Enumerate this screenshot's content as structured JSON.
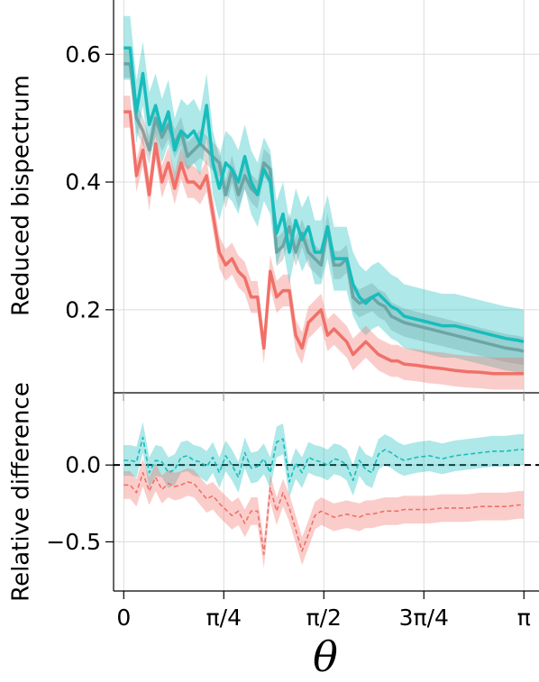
{
  "chart_data": [
    {
      "type": "line",
      "ylabel": "Reduced bispectrum",
      "xlabel": "",
      "ylim": [
        0.07,
        0.685
      ],
      "xlim": [
        -0.08,
        3.26
      ],
      "grid": true,
      "yticks": [
        {
          "value": 0.2,
          "label": "0.2"
        },
        {
          "value": 0.4,
          "label": "0.4"
        },
        {
          "value": 0.6,
          "label": "0.6"
        }
      ],
      "colors": {
        "gray": "#999999",
        "teal": "#17bdbd",
        "red": "#f07068"
      },
      "series": [
        {
          "key": "gray",
          "x": [
            0,
            0.05,
            0.1,
            0.15,
            0.2,
            0.25,
            0.3,
            0.35,
            0.4,
            0.45,
            0.5,
            0.55,
            0.6,
            0.65,
            0.7,
            0.75,
            0.8,
            0.85,
            0.9,
            0.95,
            1.0,
            1.05,
            1.1,
            1.15,
            1.2,
            1.25,
            1.3,
            1.35,
            1.4,
            1.45,
            1.5,
            1.55,
            1.6,
            1.65,
            1.7,
            1.75,
            1.8,
            1.85,
            1.9,
            1.95,
            2.0,
            2.05,
            2.1,
            2.15,
            2.2,
            2.3,
            2.4,
            2.5,
            2.6,
            2.7,
            2.8,
            2.9,
            3.0,
            3.1,
            3.14
          ],
          "y": [
            0.585,
            0.585,
            0.5,
            0.48,
            0.45,
            0.5,
            0.47,
            0.49,
            0.46,
            0.48,
            0.44,
            0.45,
            0.46,
            0.45,
            0.44,
            0.43,
            0.38,
            0.42,
            0.38,
            0.41,
            0.39,
            0.38,
            0.43,
            0.42,
            0.29,
            0.3,
            0.33,
            0.29,
            0.32,
            0.29,
            0.28,
            0.27,
            0.33,
            0.27,
            0.27,
            0.28,
            0.22,
            0.21,
            0.215,
            0.22,
            0.21,
            0.205,
            0.19,
            0.185,
            0.18,
            0.175,
            0.17,
            0.165,
            0.16,
            0.155,
            0.15,
            0.145,
            0.14,
            0.137,
            0.135
          ],
          "band": 0.022
        },
        {
          "key": "teal",
          "x": [
            0,
            0.05,
            0.1,
            0.15,
            0.2,
            0.25,
            0.3,
            0.35,
            0.4,
            0.45,
            0.5,
            0.55,
            0.6,
            0.65,
            0.7,
            0.75,
            0.8,
            0.85,
            0.9,
            0.95,
            1.0,
            1.05,
            1.1,
            1.15,
            1.2,
            1.25,
            1.3,
            1.35,
            1.4,
            1.45,
            1.5,
            1.55,
            1.6,
            1.65,
            1.7,
            1.75,
            1.8,
            1.85,
            1.9,
            1.95,
            2.0,
            2.05,
            2.1,
            2.15,
            2.2,
            2.3,
            2.4,
            2.5,
            2.6,
            2.7,
            2.8,
            2.9,
            3.0,
            3.1,
            3.14
          ],
          "y": [
            0.61,
            0.61,
            0.51,
            0.57,
            0.49,
            0.52,
            0.48,
            0.51,
            0.45,
            0.48,
            0.47,
            0.48,
            0.46,
            0.52,
            0.43,
            0.39,
            0.43,
            0.42,
            0.4,
            0.44,
            0.4,
            0.38,
            0.42,
            0.4,
            0.32,
            0.35,
            0.29,
            0.34,
            0.31,
            0.33,
            0.29,
            0.29,
            0.33,
            0.28,
            0.28,
            0.28,
            0.24,
            0.22,
            0.21,
            0.22,
            0.225,
            0.215,
            0.205,
            0.2,
            0.19,
            0.185,
            0.18,
            0.175,
            0.175,
            0.17,
            0.165,
            0.16,
            0.155,
            0.152,
            0.15
          ],
          "band": 0.05
        },
        {
          "key": "red",
          "x": [
            0,
            0.05,
            0.1,
            0.15,
            0.2,
            0.25,
            0.3,
            0.35,
            0.4,
            0.45,
            0.5,
            0.55,
            0.6,
            0.65,
            0.7,
            0.75,
            0.8,
            0.85,
            0.9,
            0.95,
            1.0,
            1.05,
            1.1,
            1.15,
            1.2,
            1.25,
            1.3,
            1.35,
            1.4,
            1.45,
            1.5,
            1.55,
            1.6,
            1.65,
            1.7,
            1.75,
            1.8,
            1.85,
            1.9,
            1.95,
            2.0,
            2.05,
            2.1,
            2.15,
            2.2,
            2.3,
            2.4,
            2.5,
            2.6,
            2.7,
            2.8,
            2.9,
            3.0,
            3.1,
            3.14
          ],
          "y": [
            0.51,
            0.51,
            0.41,
            0.45,
            0.38,
            0.46,
            0.4,
            0.43,
            0.39,
            0.43,
            0.4,
            0.4,
            0.39,
            0.41,
            0.35,
            0.29,
            0.27,
            0.28,
            0.26,
            0.25,
            0.22,
            0.22,
            0.14,
            0.26,
            0.22,
            0.23,
            0.23,
            0.16,
            0.14,
            0.18,
            0.19,
            0.2,
            0.16,
            0.17,
            0.16,
            0.15,
            0.13,
            0.14,
            0.15,
            0.14,
            0.13,
            0.125,
            0.12,
            0.12,
            0.115,
            0.113,
            0.11,
            0.108,
            0.105,
            0.103,
            0.102,
            0.1,
            0.1,
            0.1,
            0.1
          ],
          "band": 0.025
        }
      ]
    },
    {
      "type": "line",
      "ylabel": "Relative difference",
      "xlabel": "θ",
      "ylim": [
        -0.82,
        0.47
      ],
      "xlim": [
        -0.08,
        3.26
      ],
      "grid": true,
      "reference_line": 0,
      "yticks": [
        {
          "value": -0.5,
          "label": "−0.5"
        },
        {
          "value": 0.0,
          "label": "0.0"
        }
      ],
      "xticks": [
        {
          "value": 0,
          "label": "0"
        },
        {
          "value": 0.7854,
          "label": "π/4"
        },
        {
          "value": 1.5708,
          "label": "π/2"
        },
        {
          "value": 2.3562,
          "label": "3π/4"
        },
        {
          "value": 3.1416,
          "label": "π"
        }
      ],
      "colors": {
        "teal": "#17bdbd",
        "red": "#f07068"
      },
      "series": [
        {
          "key": "teal",
          "x": [
            0,
            0.05,
            0.1,
            0.15,
            0.2,
            0.25,
            0.3,
            0.35,
            0.4,
            0.45,
            0.5,
            0.55,
            0.6,
            0.65,
            0.7,
            0.75,
            0.8,
            0.85,
            0.9,
            0.95,
            1.0,
            1.05,
            1.1,
            1.15,
            1.2,
            1.25,
            1.3,
            1.35,
            1.4,
            1.45,
            1.5,
            1.55,
            1.6,
            1.65,
            1.7,
            1.75,
            1.8,
            1.85,
            1.9,
            1.95,
            2.0,
            2.05,
            2.1,
            2.15,
            2.2,
            2.3,
            2.4,
            2.5,
            2.6,
            2.7,
            2.8,
            2.9,
            3.0,
            3.1,
            3.14
          ],
          "y": [
            0.03,
            0.03,
            0.02,
            0.18,
            -0.05,
            0.03,
            0.02,
            -0.05,
            -0.03,
            0.05,
            0.06,
            0.03,
            0.02,
            -0.01,
            0.05,
            -0.05,
            0.06,
            0.0,
            -0.08,
            0.08,
            -0.02,
            -0.01,
            0.04,
            -0.05,
            0.15,
            0.17,
            -0.11,
            0.01,
            -0.05,
            0.05,
            0.03,
            0.02,
            0.0,
            0.04,
            0.03,
            0.0,
            -0.1,
            0.03,
            -0.03,
            -0.05,
            0.07,
            0.1,
            0.08,
            0.05,
            0.03,
            0.05,
            0.06,
            0.04,
            0.06,
            0.07,
            0.08,
            0.09,
            0.09,
            0.1,
            0.1
          ],
          "band": 0.1
        },
        {
          "key": "red",
          "x": [
            0,
            0.05,
            0.1,
            0.15,
            0.2,
            0.25,
            0.3,
            0.35,
            0.4,
            0.45,
            0.5,
            0.55,
            0.6,
            0.65,
            0.7,
            0.75,
            0.8,
            0.85,
            0.9,
            0.95,
            1.0,
            1.05,
            1.1,
            1.15,
            1.2,
            1.25,
            1.3,
            1.35,
            1.4,
            1.45,
            1.5,
            1.55,
            1.6,
            1.65,
            1.7,
            1.75,
            1.8,
            1.85,
            1.9,
            1.95,
            2.0,
            2.05,
            2.1,
            2.15,
            2.2,
            2.3,
            2.4,
            2.5,
            2.6,
            2.7,
            2.8,
            2.9,
            3.0,
            3.1,
            3.14
          ],
          "y": [
            -0.13,
            -0.13,
            -0.18,
            -0.05,
            -0.17,
            -0.08,
            -0.16,
            -0.12,
            -0.14,
            -0.13,
            -0.11,
            -0.12,
            -0.17,
            -0.22,
            -0.2,
            -0.25,
            -0.29,
            -0.33,
            -0.3,
            -0.38,
            -0.3,
            -0.3,
            -0.58,
            -0.15,
            -0.3,
            -0.18,
            -0.28,
            -0.42,
            -0.56,
            -0.45,
            -0.33,
            -0.3,
            -0.32,
            -0.34,
            -0.33,
            -0.32,
            -0.33,
            -0.34,
            -0.32,
            -0.32,
            -0.31,
            -0.3,
            -0.3,
            -0.3,
            -0.29,
            -0.29,
            -0.29,
            -0.28,
            -0.28,
            -0.28,
            -0.27,
            -0.27,
            -0.27,
            -0.26,
            -0.26
          ],
          "band": 0.09
        }
      ]
    }
  ]
}
